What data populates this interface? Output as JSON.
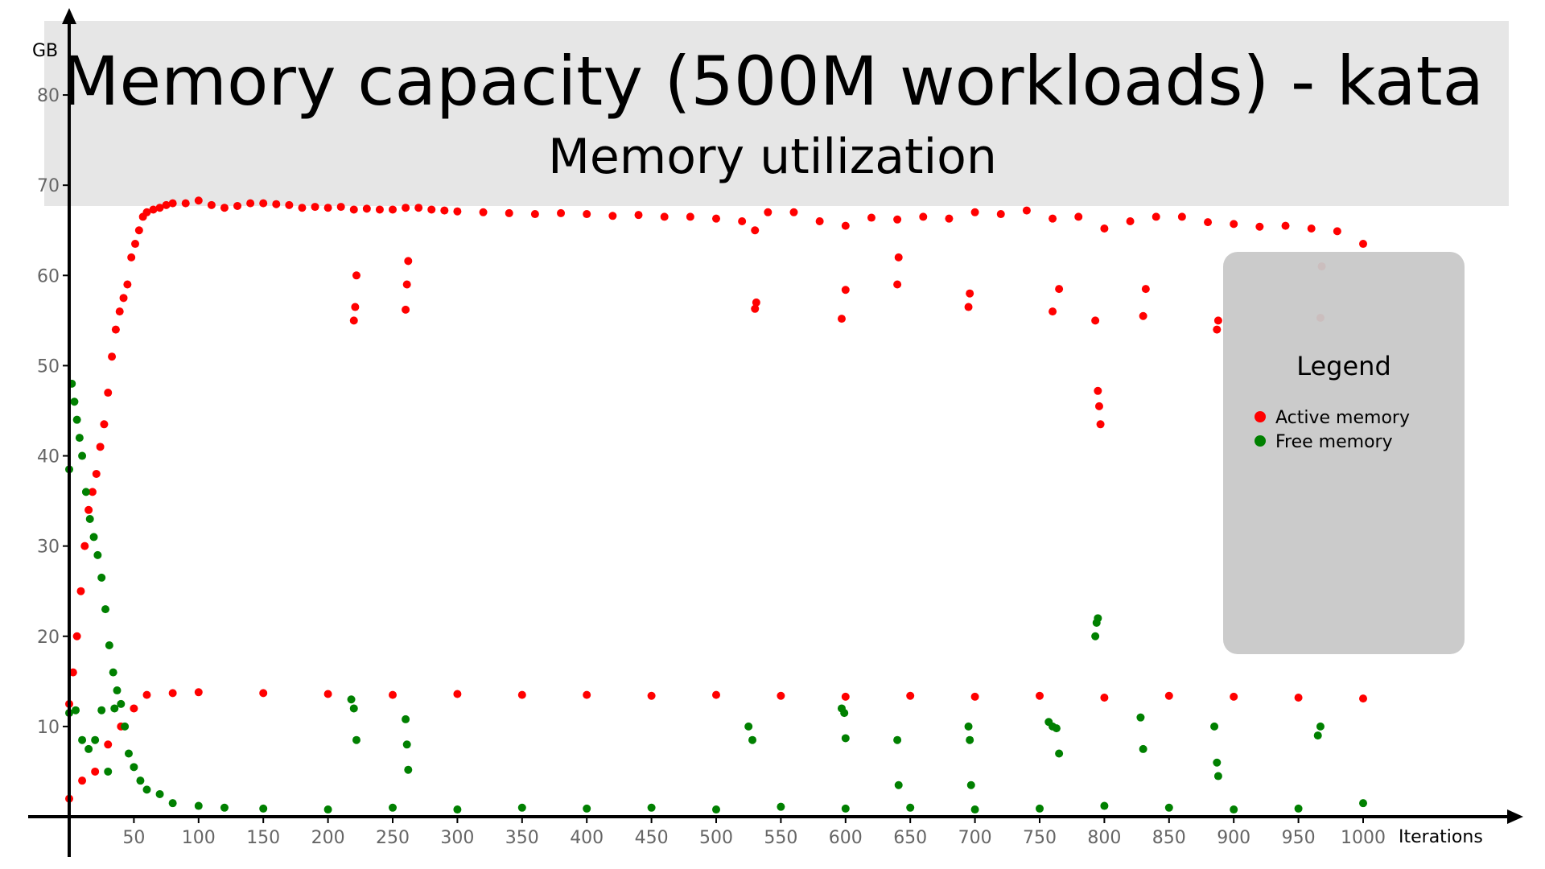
{
  "chart_data": {
    "type": "scatter",
    "title": "Memory capacity (500M workloads) - kata",
    "subtitle": "Memory utilization",
    "xlabel": "Iterations",
    "ylabel": "GB",
    "xlim": [
      0,
      1000
    ],
    "ylim": [
      0,
      85
    ],
    "x_ticks": [
      50,
      100,
      150,
      200,
      250,
      300,
      350,
      400,
      450,
      500,
      550,
      600,
      650,
      700,
      750,
      800,
      850,
      900,
      950,
      1000
    ],
    "y_ticks": [
      10,
      20,
      30,
      40,
      50,
      60,
      70,
      80
    ],
    "grid": false,
    "legend": {
      "title": "Legend",
      "placement": "right",
      "entries": [
        {
          "label": "Active memory",
          "color": "#ff0000"
        },
        {
          "label": "Free memory",
          "color": "#008000"
        }
      ]
    },
    "series": [
      {
        "name": "Active memory",
        "color": "#ff0000",
        "x": [
          0,
          3,
          6,
          9,
          12,
          15,
          18,
          21,
          24,
          27,
          30,
          33,
          36,
          39,
          42,
          45,
          48,
          51,
          54,
          57,
          60,
          65,
          70,
          75,
          80,
          90,
          100,
          110,
          120,
          130,
          140,
          150,
          160,
          170,
          180,
          190,
          200,
          210,
          220,
          230,
          240,
          250,
          260,
          270,
          280,
          290,
          300,
          320,
          340,
          360,
          380,
          400,
          420,
          440,
          460,
          480,
          500,
          520,
          530,
          540,
          560,
          580,
          600,
          620,
          640,
          660,
          680,
          700,
          720,
          740,
          760,
          780,
          800,
          820,
          840,
          860,
          880,
          900,
          920,
          940,
          960,
          980,
          1000
        ],
        "y": [
          12.5,
          16,
          20,
          25,
          30,
          34,
          36,
          38,
          41,
          43.5,
          47,
          51,
          54,
          56,
          57.5,
          59,
          62,
          63.5,
          65,
          66.5,
          67,
          67.3,
          67.5,
          67.8,
          68,
          68,
          68.3,
          67.8,
          67.5,
          67.7,
          68,
          68,
          67.9,
          67.8,
          67.5,
          67.6,
          67.5,
          67.6,
          67.3,
          67.4,
          67.3,
          67.3,
          67.5,
          67.5,
          67.3,
          67.2,
          67.1,
          67.0,
          66.9,
          66.8,
          66.9,
          66.8,
          66.6,
          66.7,
          66.5,
          66.5,
          66.3,
          66.0,
          65.0,
          67.0,
          67.0,
          66.0,
          65.5,
          66.4,
          66.2,
          66.5,
          66.3,
          67.0,
          66.8,
          67.2,
          66.3,
          66.5,
          65.2,
          66.0,
          66.5,
          66.5,
          65.9,
          65.7,
          65.4,
          65.5,
          65.2,
          64.9,
          63.5
        ]
      },
      {
        "name": "Active memory",
        "color": "#ff0000",
        "x": [
          220,
          221,
          222,
          260,
          261,
          262,
          530,
          531,
          597,
          600,
          640,
          641,
          695,
          696,
          760,
          765,
          793,
          795,
          796,
          797,
          830,
          832,
          887,
          888,
          967,
          968
        ],
        "y": [
          55,
          56.5,
          60,
          56.2,
          59,
          61.6,
          56.3,
          57,
          55.2,
          58.4,
          59,
          62,
          56.5,
          58,
          56,
          58.5,
          55,
          47.2,
          45.5,
          43.5,
          55.5,
          58.5,
          54,
          55,
          55.3,
          61
        ]
      },
      {
        "name": "Active memory",
        "color": "#ff0000",
        "x": [
          0,
          10,
          20,
          30,
          40,
          50,
          60,
          80,
          100,
          150,
          200,
          250,
          300,
          350,
          400,
          450,
          500,
          550,
          600,
          650,
          700,
          750,
          800,
          850,
          900,
          950,
          1000
        ],
        "y": [
          2,
          4,
          5,
          8,
          10,
          12,
          13.5,
          13.7,
          13.8,
          13.7,
          13.6,
          13.5,
          13.6,
          13.5,
          13.5,
          13.4,
          13.5,
          13.4,
          13.3,
          13.4,
          13.3,
          13.4,
          13.2,
          13.4,
          13.3,
          13.2,
          13.1
        ]
      },
      {
        "name": "Free memory",
        "color": "#008000",
        "x": [
          0,
          2,
          4,
          6,
          8,
          10,
          13,
          16,
          19,
          22,
          25,
          28,
          31,
          34,
          37,
          40,
          43,
          46,
          50,
          55,
          60,
          70,
          80,
          100,
          120,
          150,
          200,
          250,
          300,
          350,
          400,
          450,
          500,
          550,
          600,
          650,
          700,
          750,
          800,
          850,
          900,
          950,
          1000
        ],
        "y": [
          38.5,
          48,
          46,
          44,
          42,
          40,
          36,
          33,
          31,
          29,
          26.5,
          23,
          19,
          16,
          14,
          12.5,
          10,
          7,
          5.5,
          4,
          3,
          2.5,
          1.5,
          1.2,
          1.0,
          0.9,
          0.8,
          1.0,
          0.8,
          1.0,
          0.9,
          1.0,
          0.8,
          1.1,
          0.9,
          1.0,
          0.8,
          0.9,
          1.2,
          1.0,
          0.8,
          0.9,
          1.5
        ]
      },
      {
        "name": "Free memory",
        "color": "#008000",
        "x": [
          218,
          220,
          222,
          260,
          261,
          262,
          525,
          528,
          597,
          599,
          600,
          640,
          641,
          695,
          696,
          697,
          757,
          760,
          763,
          765,
          793,
          794,
          795,
          828,
          830,
          885,
          887,
          888,
          965,
          967
        ],
        "y": [
          13,
          12,
          8.5,
          10.8,
          8,
          5.2,
          10,
          8.5,
          12,
          11.5,
          8.7,
          8.5,
          3.5,
          10,
          8.5,
          3.5,
          10.5,
          10,
          9.8,
          7,
          20,
          21.5,
          22,
          11,
          7.5,
          10,
          6,
          4.5,
          9,
          10
        ]
      },
      {
        "name": "Free memory",
        "color": "#008000",
        "x": [
          0,
          5,
          10,
          15,
          20,
          25,
          30,
          35
        ],
        "y": [
          11.5,
          11.8,
          8.5,
          7.5,
          8.5,
          11.8,
          5,
          12
        ]
      }
    ]
  }
}
